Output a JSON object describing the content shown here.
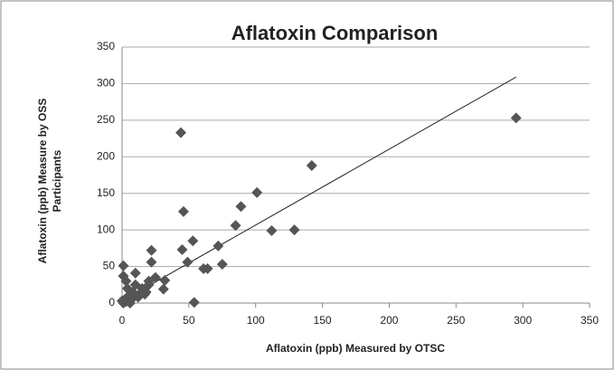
{
  "chart_data": {
    "type": "scatter",
    "title": "Aflatoxin Comparison",
    "xlabel": "Aflatoxin (ppb) Measured by OTSC",
    "ylabel": [
      "Aflatoxin (ppb) Measure by OSS",
      "Participants"
    ],
    "xlim": [
      0,
      350
    ],
    "ylim": [
      0,
      350
    ],
    "xticks": [
      0,
      50,
      100,
      150,
      200,
      250,
      300,
      350
    ],
    "yticks": [
      0,
      50,
      100,
      150,
      200,
      250,
      300,
      350
    ],
    "grid": true,
    "color": "#555555",
    "series": [
      {
        "x": [
          44,
          295,
          142,
          101,
          89,
          85,
          112,
          129,
          46,
          72,
          75,
          45,
          53,
          49,
          61,
          64,
          54,
          22,
          22,
          10,
          1,
          1,
          32,
          31,
          20,
          17,
          2,
          3,
          5,
          1,
          4,
          8,
          12,
          0,
          6,
          15,
          20,
          25,
          10,
          3,
          7,
          18,
          13
        ],
        "values": [
          233,
          253,
          188,
          151,
          132,
          106,
          99,
          100,
          125,
          78,
          53,
          73,
          85,
          56,
          47,
          47,
          1,
          72,
          56,
          41,
          51,
          37,
          31,
          19,
          25,
          12,
          5,
          2,
          10,
          0,
          20,
          15,
          8,
          3,
          0,
          20,
          30,
          35,
          25,
          30,
          5,
          15,
          12
        ]
      }
    ],
    "trendline": {
      "x": [
        3,
        295
      ],
      "values": [
        6,
        309
      ]
    }
  }
}
